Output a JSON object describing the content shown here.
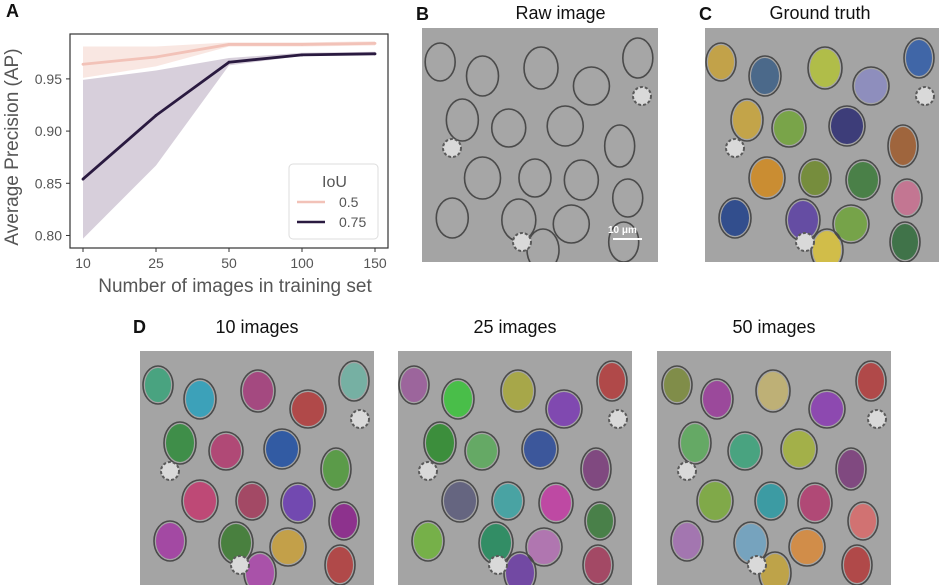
{
  "panels": {
    "a": "A",
    "b": "B",
    "c": "C",
    "d": "D"
  },
  "images": {
    "raw_title": "Raw image",
    "gt_title": "Ground truth",
    "scalebar_label": "10 μm",
    "row_titles": [
      "10 images",
      "25 images",
      "50 images"
    ]
  },
  "chart_data": {
    "type": "line",
    "xlabel": "Number of images in training set",
    "ylabel": "Average Precision (AP)",
    "categories": [
      "10",
      "25",
      "50",
      "100",
      "150"
    ],
    "yticks": [
      "0.80",
      "0.85",
      "0.90",
      "0.95"
    ],
    "ytick_values": [
      0.8,
      0.85,
      0.9,
      0.95
    ],
    "ylim": [
      0.788,
      0.993
    ],
    "grid": false,
    "legend_title": "IoU",
    "legend_position": "center-right",
    "series": [
      {
        "name": "0.5",
        "color": "#f2c2b8",
        "band_color": "#f7dfd8",
        "values": [
          0.964,
          0.971,
          0.983,
          0.983,
          0.984
        ],
        "lower": [
          0.951,
          0.962,
          0.981,
          0.981,
          0.982
        ],
        "upper": [
          0.981,
          0.981,
          0.985,
          0.985,
          0.986
        ]
      },
      {
        "name": "0.75",
        "color": "#2a1a40",
        "band_color": "#c9bfcf",
        "values": [
          0.854,
          0.915,
          0.966,
          0.973,
          0.974
        ],
        "lower": [
          0.797,
          0.867,
          0.963,
          0.972,
          0.973
        ],
        "upper": [
          0.949,
          0.958,
          0.97,
          0.975,
          0.976
        ]
      }
    ]
  }
}
